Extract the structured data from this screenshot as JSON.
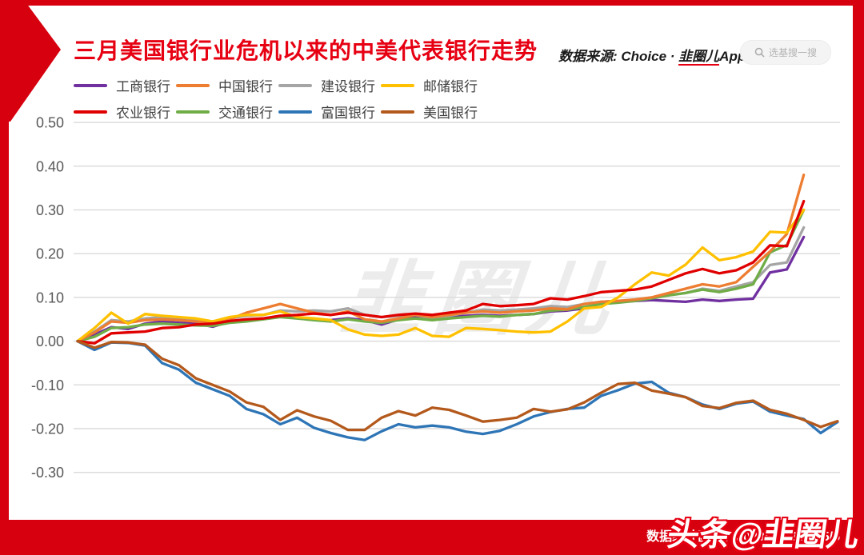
{
  "accent_color": "#d7000f",
  "title": "三月美国银行业危机以来的中美代表银行走势",
  "source": {
    "prefix": "数据来源: Choice · ",
    "brand": "韭圈儿",
    "suffix": "App"
  },
  "search": {
    "placeholder": "选基搜一搜",
    "icon": "search-icon"
  },
  "center_watermark": "韭圈儿",
  "footer": {
    "range_text": "数据统计区间：2023/3/1-2023/5/5",
    "watermark": "头条@韭圈儿"
  },
  "chart_data": {
    "type": "line",
    "title": "三月美国银行业危机以来的中美代表银行走势",
    "xlabel": "",
    "ylabel": "",
    "x_unit": "trading-day index since 2023/3/1 (no x tick labels shown)",
    "ylim": [
      -0.3,
      0.5
    ],
    "grid": true,
    "legend_position": "top",
    "y_gridlines": [
      0.5,
      0.4,
      0.3,
      0.2,
      0.1,
      0.0,
      -0.1,
      -0.2,
      -0.3
    ],
    "y_tick_labels": [
      "0.50",
      "0.40",
      "0.30",
      "0.20",
      "0.10",
      "0.00",
      "-0.10",
      "-0.20",
      "-0.30"
    ],
    "series": [
      {
        "name": "工商银行",
        "color": "#7030A0",
        "values": [
          0.0,
          0.015,
          0.032,
          0.028,
          0.04,
          0.045,
          0.042,
          0.04,
          0.033,
          0.045,
          0.048,
          0.052,
          0.058,
          0.055,
          0.05,
          0.048,
          0.052,
          0.048,
          0.038,
          0.05,
          0.055,
          0.05,
          0.055,
          0.058,
          0.06,
          0.058,
          0.06,
          0.062,
          0.068,
          0.07,
          0.075,
          0.088,
          0.09,
          0.092,
          0.094,
          0.092,
          0.09,
          0.095,
          0.092,
          0.095,
          0.097,
          0.157,
          0.164,
          0.238
        ]
      },
      {
        "name": "中国银行",
        "color": "#ED7D31",
        "values": [
          0.0,
          0.02,
          0.045,
          0.042,
          0.048,
          0.05,
          0.048,
          0.045,
          0.042,
          0.05,
          0.065,
          0.075,
          0.085,
          0.075,
          0.065,
          0.06,
          0.068,
          0.05,
          0.045,
          0.052,
          0.06,
          0.055,
          0.06,
          0.065,
          0.068,
          0.065,
          0.068,
          0.07,
          0.075,
          0.073,
          0.085,
          0.09,
          0.092,
          0.095,
          0.1,
          0.11,
          0.12,
          0.13,
          0.125,
          0.135,
          0.17,
          0.205,
          0.245,
          0.38
        ]
      },
      {
        "name": "建设银行",
        "color": "#A5A5A5",
        "values": [
          0.0,
          0.022,
          0.048,
          0.045,
          0.052,
          0.055,
          0.05,
          0.048,
          0.045,
          0.052,
          0.058,
          0.06,
          0.07,
          0.068,
          0.07,
          0.068,
          0.075,
          0.06,
          0.055,
          0.058,
          0.06,
          0.052,
          0.058,
          0.065,
          0.072,
          0.07,
          0.072,
          0.075,
          0.08,
          0.078,
          0.085,
          0.09,
          0.092,
          0.095,
          0.1,
          0.105,
          0.11,
          0.12,
          0.115,
          0.125,
          0.135,
          0.174,
          0.18,
          0.26
        ]
      },
      {
        "name": "邮储银行",
        "color": "#FFC000",
        "values": [
          0.0,
          0.03,
          0.065,
          0.04,
          0.062,
          0.058,
          0.055,
          0.052,
          0.045,
          0.055,
          0.06,
          0.06,
          0.068,
          0.055,
          0.052,
          0.048,
          0.027,
          0.015,
          0.012,
          0.015,
          0.03,
          0.012,
          0.01,
          0.03,
          0.028,
          0.025,
          0.022,
          0.02,
          0.022,
          0.045,
          0.075,
          0.078,
          0.1,
          0.13,
          0.157,
          0.15,
          0.175,
          0.214,
          0.185,
          0.192,
          0.205,
          0.25,
          0.248,
          0.3
        ]
      },
      {
        "name": "农业银行",
        "color": "#E00000",
        "values": [
          0.0,
          -0.005,
          0.018,
          0.02,
          0.022,
          0.03,
          0.032,
          0.038,
          0.04,
          0.046,
          0.05,
          0.052,
          0.058,
          0.06,
          0.063,
          0.06,
          0.065,
          0.06,
          0.055,
          0.06,
          0.063,
          0.06,
          0.065,
          0.07,
          0.085,
          0.08,
          0.082,
          0.085,
          0.098,
          0.095,
          0.103,
          0.112,
          0.115,
          0.118,
          0.125,
          0.14,
          0.155,
          0.165,
          0.155,
          0.162,
          0.18,
          0.219,
          0.217,
          0.32
        ]
      },
      {
        "name": "交通银行",
        "color": "#70AD47",
        "values": [
          0.0,
          0.01,
          0.03,
          0.032,
          0.038,
          0.04,
          0.038,
          0.036,
          0.035,
          0.042,
          0.045,
          0.05,
          0.055,
          0.052,
          0.048,
          0.045,
          0.05,
          0.045,
          0.042,
          0.048,
          0.052,
          0.048,
          0.052,
          0.055,
          0.058,
          0.056,
          0.06,
          0.062,
          0.07,
          0.072,
          0.078,
          0.085,
          0.088,
          0.092,
          0.098,
          0.105,
          0.11,
          0.118,
          0.112,
          0.12,
          0.13,
          0.203,
          0.22,
          0.3
        ]
      },
      {
        "name": "富国银行",
        "color": "#2E75B6",
        "values": [
          0.0,
          -0.02,
          -0.003,
          -0.004,
          -0.01,
          -0.05,
          -0.065,
          -0.095,
          -0.11,
          -0.125,
          -0.155,
          -0.167,
          -0.19,
          -0.175,
          -0.198,
          -0.21,
          -0.22,
          -0.226,
          -0.206,
          -0.19,
          -0.197,
          -0.193,
          -0.197,
          -0.207,
          -0.212,
          -0.205,
          -0.19,
          -0.172,
          -0.162,
          -0.155,
          -0.152,
          -0.125,
          -0.112,
          -0.097,
          -0.093,
          -0.118,
          -0.128,
          -0.145,
          -0.155,
          -0.143,
          -0.138,
          -0.161,
          -0.17,
          -0.178,
          -0.21,
          -0.185
        ]
      },
      {
        "name": "美国银行",
        "color": "#B4591C",
        "values": [
          0.0,
          -0.015,
          -0.002,
          -0.003,
          -0.008,
          -0.04,
          -0.055,
          -0.085,
          -0.1,
          -0.115,
          -0.14,
          -0.15,
          -0.18,
          -0.158,
          -0.172,
          -0.182,
          -0.203,
          -0.203,
          -0.175,
          -0.16,
          -0.17,
          -0.152,
          -0.157,
          -0.17,
          -0.184,
          -0.18,
          -0.175,
          -0.155,
          -0.161,
          -0.156,
          -0.14,
          -0.118,
          -0.098,
          -0.095,
          -0.113,
          -0.12,
          -0.128,
          -0.148,
          -0.153,
          -0.141,
          -0.136,
          -0.157,
          -0.166,
          -0.18,
          -0.196,
          -0.183
        ]
      }
    ]
  }
}
